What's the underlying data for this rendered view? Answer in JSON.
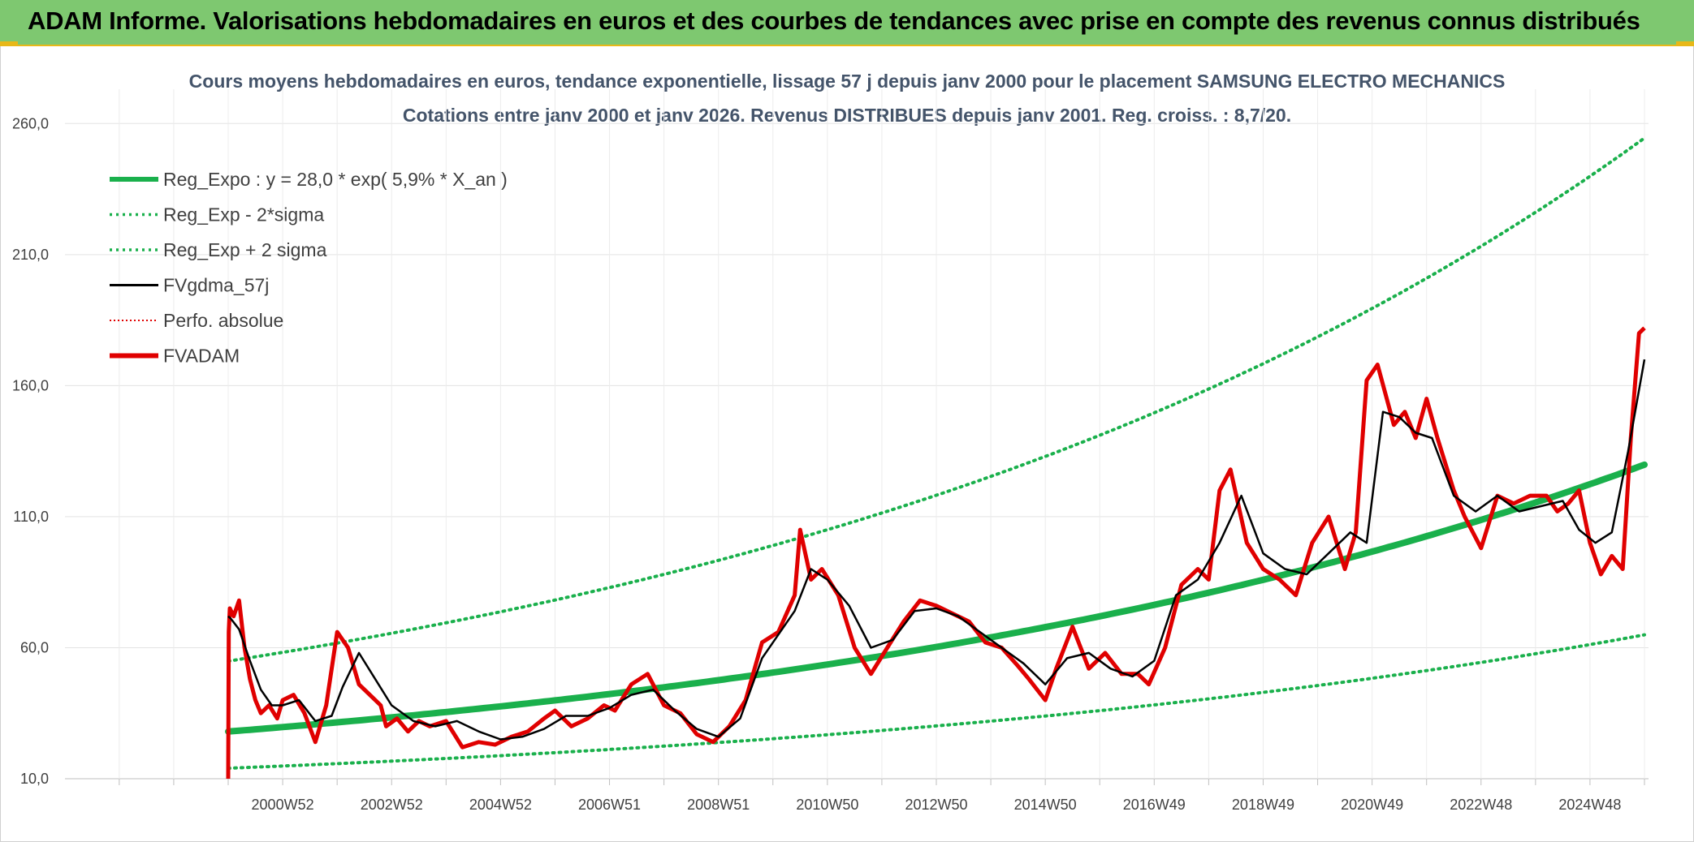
{
  "header": {
    "title": "ADAM Informe. Valorisations hebdomadaires en euros et des courbes de tendances avec prise en compte des revenus connus distribués"
  },
  "chart_data": {
    "type": "line",
    "title_line1": "Cours moyens hebdomadaires en euros, tendance exponentielle, lissage 57 j depuis janv 2000 pour le placement SAMSUNG ELECTRO MECHANICS",
    "title_line2": "Cotations entre janv 2000 et janv 2026. Revenus DISTRIBUES depuis janv 2001. Reg. croiss. : 8,7/20.",
    "xlabel": "",
    "ylabel": "",
    "ylim": [
      10,
      270
    ],
    "xlim": [
      2000.0,
      2026.0
    ],
    "y_ticks": [
      "10,0",
      "60,0",
      "110,0",
      "160,0",
      "210,0",
      "260,0"
    ],
    "y_tick_values": [
      10,
      60,
      110,
      160,
      210,
      260
    ],
    "x_ticks": [
      "2000W52",
      "2002W52",
      "2004W52",
      "2006W51",
      "2008W51",
      "2010W50",
      "2012W50",
      "2014W50",
      "2016W49",
      "2018W49",
      "2020W49",
      "2022W48",
      "2024W48"
    ],
    "x_tick_values": [
      2001,
      2003,
      2005,
      2007,
      2009,
      2011,
      2013,
      2015,
      2017,
      2019,
      2021,
      2023,
      2025
    ],
    "grid": true,
    "legend_position": "top-left",
    "legend": [
      {
        "label": "Reg_Expo : y = 28,0 * exp( 5,9% *  X_an )",
        "color": "#1ab04c",
        "style": "thick"
      },
      {
        "label": "Reg_Exp - 2*sigma",
        "color": "#1ab04c",
        "style": "dotted"
      },
      {
        "label": "Reg_Exp + 2 sigma",
        "color": "#1ab04c",
        "style": "dotted"
      },
      {
        "label": "FVgdma_57j",
        "color": "#000000",
        "style": "solid"
      },
      {
        "label": "Perfo. absolue",
        "color": "#e00000",
        "style": "dotted"
      },
      {
        "label": "FVADAM",
        "color": "#e00000",
        "style": "thick"
      }
    ],
    "regression": {
      "a": 28.0,
      "rate": 0.059,
      "x0": 2000.0
    },
    "sigma_bands": {
      "lower_factor": 0.5,
      "upper_factor": 1.96
    },
    "series": [
      {
        "name": "FVADAM",
        "x": [
          2000.0,
          2000.01,
          2000.03,
          2000.1,
          2000.2,
          2000.3,
          2000.4,
          2000.5,
          2000.6,
          2000.75,
          2000.9,
          2001.0,
          2001.2,
          2001.4,
          2001.6,
          2001.8,
          2002.0,
          2002.2,
          2002.4,
          2002.6,
          2002.8,
          2002.9,
          2003.1,
          2003.3,
          2003.5,
          2003.7,
          2004.0,
          2004.3,
          2004.6,
          2004.9,
          2005.2,
          2005.5,
          2005.8,
          2006.0,
          2006.3,
          2006.6,
          2006.9,
          2007.1,
          2007.4,
          2007.7,
          2008.0,
          2008.3,
          2008.6,
          2008.9,
          2009.2,
          2009.5,
          2009.8,
          2010.1,
          2010.4,
          2010.5,
          2010.7,
          2010.9,
          2011.2,
          2011.5,
          2011.8,
          2012.1,
          2012.4,
          2012.7,
          2013.0,
          2013.3,
          2013.6,
          2013.9,
          2014.2,
          2014.5,
          2014.7,
          2015.0,
          2015.2,
          2015.5,
          2015.8,
          2016.1,
          2016.4,
          2016.7,
          2016.9,
          2017.2,
          2017.5,
          2017.8,
          2018.0,
          2018.2,
          2018.4,
          2018.7,
          2019.0,
          2019.3,
          2019.6,
          2019.9,
          2020.2,
          2020.5,
          2020.7,
          2020.9,
          2021.1,
          2021.4,
          2021.6,
          2021.8,
          2022.0,
          2022.2,
          2022.5,
          2022.7,
          2023.0,
          2023.3,
          2023.6,
          2023.9,
          2024.2,
          2024.4,
          2024.6,
          2024.8,
          2025.0,
          2025.2,
          2025.4,
          2025.6,
          2025.75,
          2025.9,
          2026.0
        ],
        "y": [
          10,
          66,
          75,
          72,
          78,
          60,
          48,
          40,
          35,
          38,
          33,
          40,
          42,
          35,
          24,
          38,
          66,
          60,
          46,
          42,
          38,
          30,
          33,
          28,
          32,
          30,
          32,
          22,
          24,
          23,
          26,
          28,
          33,
          36,
          30,
          33,
          38,
          36,
          46,
          50,
          38,
          35,
          27,
          24,
          30,
          40,
          62,
          66,
          80,
          105,
          86,
          90,
          80,
          60,
          50,
          60,
          70,
          78,
          76,
          73,
          70,
          62,
          60,
          53,
          48,
          40,
          52,
          68,
          52,
          58,
          50,
          50,
          46,
          60,
          84,
          90,
          86,
          120,
          128,
          100,
          90,
          86,
          80,
          100,
          110,
          90,
          104,
          162,
          168,
          145,
          150,
          140,
          155,
          140,
          120,
          110,
          98,
          118,
          115,
          118,
          118,
          112,
          115,
          120,
          100,
          88,
          95,
          90,
          140,
          180,
          182
        ]
      },
      {
        "name": "FVgdma_57j",
        "x": [
          2000.0,
          2000.05,
          2000.2,
          2000.4,
          2000.6,
          2000.8,
          2001.0,
          2001.3,
          2001.6,
          2001.9,
          2002.1,
          2002.4,
          2002.7,
          2003.0,
          2003.4,
          2003.8,
          2004.2,
          2004.6,
          2005.0,
          2005.4,
          2005.8,
          2006.2,
          2006.6,
          2007.0,
          2007.4,
          2007.8,
          2008.2,
          2008.6,
          2009.0,
          2009.4,
          2009.8,
          2010.1,
          2010.4,
          2010.7,
          2011.0,
          2011.4,
          2011.8,
          2012.2,
          2012.6,
          2013.0,
          2013.4,
          2013.8,
          2014.2,
          2014.6,
          2015.0,
          2015.4,
          2015.8,
          2016.2,
          2016.6,
          2017.0,
          2017.4,
          2017.8,
          2018.2,
          2018.6,
          2019.0,
          2019.4,
          2019.8,
          2020.2,
          2020.6,
          2020.9,
          2021.2,
          2021.5,
          2021.8,
          2022.1,
          2022.5,
          2022.9,
          2023.3,
          2023.7,
          2024.1,
          2024.5,
          2024.8,
          2025.1,
          2025.4,
          2025.7,
          2026.0
        ],
        "y": [
          72,
          71,
          67,
          55,
          44,
          38,
          38,
          40,
          32,
          34,
          45,
          58,
          48,
          38,
          32,
          30,
          32,
          28,
          25,
          26,
          29,
          34,
          34,
          37,
          42,
          44,
          36,
          29,
          26,
          33,
          56,
          65,
          74,
          90,
          86,
          76,
          60,
          63,
          74,
          75,
          72,
          66,
          60,
          54,
          46,
          56,
          58,
          52,
          49,
          55,
          80,
          86,
          100,
          118,
          96,
          90,
          88,
          96,
          104,
          100,
          150,
          148,
          142,
          140,
          118,
          112,
          118,
          112,
          114,
          116,
          105,
          100,
          104,
          135,
          170
        ]
      }
    ]
  }
}
